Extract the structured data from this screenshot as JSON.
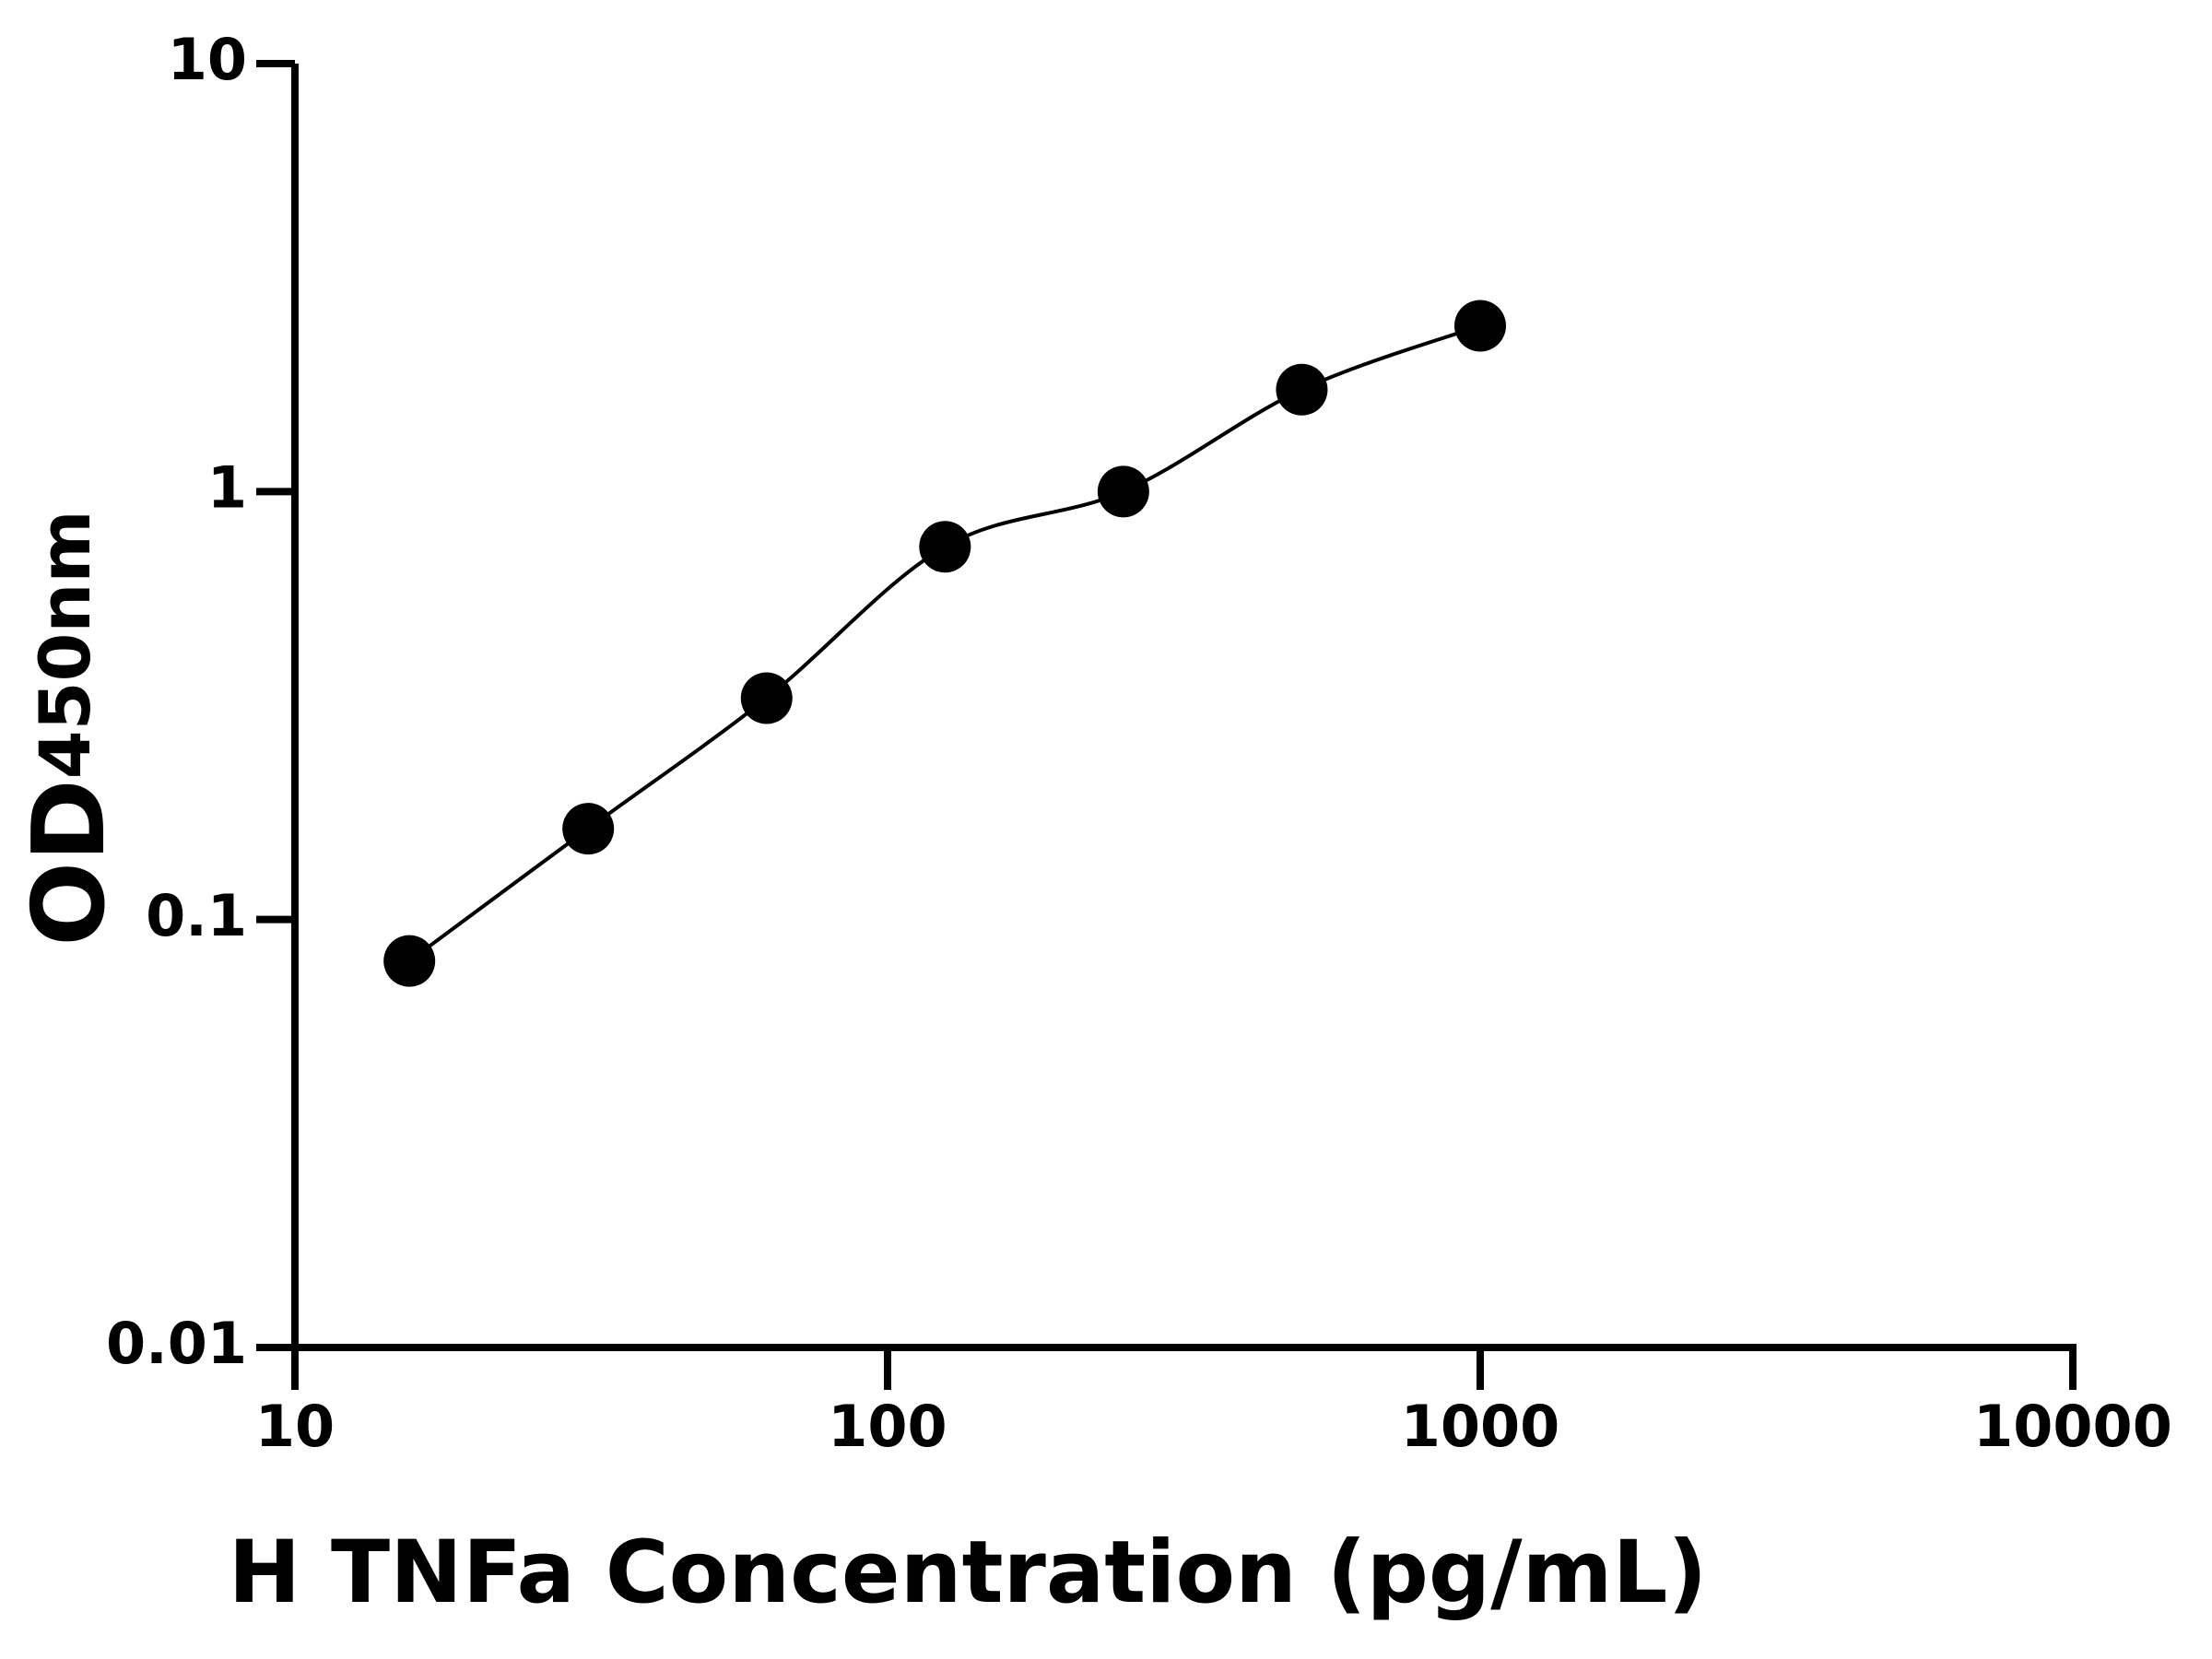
{
  "chart_data": {
    "type": "scatter",
    "x_label": "H TNFa Concentration (pg/mL)",
    "y_label": "OD",
    "y_label_subscript": "450nm",
    "x_log": true,
    "y_log": true,
    "xlim": [
      10,
      10000
    ],
    "xticks": [
      10,
      100,
      1000,
      10000
    ],
    "ylim": [
      0.01,
      10
    ],
    "yticks": [
      0.01,
      0.1,
      1,
      10
    ],
    "series": [
      {
        "color": "#000000",
        "x": [
          15.6,
          31.25,
          62.5,
          125,
          250,
          500,
          1000
        ],
        "values": [
          0.08,
          0.163,
          0.329,
          0.743,
          1.0,
          1.73,
          2.44
        ]
      }
    ]
  }
}
